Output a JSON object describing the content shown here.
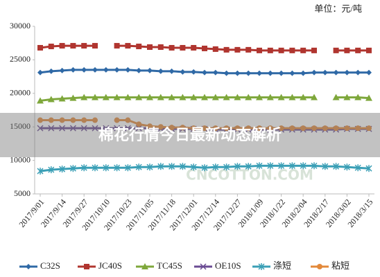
{
  "chart_data": {
    "type": "line",
    "unit_label": "单位：元/吨",
    "banner": "棉花行情今日最新动态解析",
    "watermark": "CNCOTTON.COM",
    "categories": [
      "2017/9/01",
      null,
      "2017/9/14",
      null,
      "2017/9/27",
      null,
      "2017/10/10",
      null,
      "2017/10/23",
      null,
      "2017/11/05",
      null,
      "2017/11/18",
      null,
      "2017/12/01",
      null,
      "2017/12/14",
      null,
      "2017/12/27",
      null,
      "2018/1/09",
      null,
      "2018/1/22",
      null,
      "2018/2/04",
      null,
      "2018/2/17",
      null,
      "2018/3/02",
      null,
      "2018/3/15"
    ],
    "series": [
      {
        "name": "C32S",
        "color": "#2f69a6",
        "marker": "diamond",
        "values": [
          23100,
          23300,
          23400,
          23500,
          23500,
          23500,
          23500,
          23500,
          23500,
          23400,
          23400,
          23300,
          23300,
          23200,
          23200,
          23100,
          23100,
          23000,
          23000,
          23000,
          23000,
          23000,
          23000,
          23000,
          23000,
          23100,
          23100,
          23100,
          23100,
          23100,
          23100
        ]
      },
      {
        "name": "JC40S",
        "color": "#b0352f",
        "marker": "square",
        "values": [
          26800,
          27000,
          27100,
          27100,
          27100,
          27100,
          null,
          27100,
          27100,
          27000,
          26900,
          26900,
          26800,
          26800,
          26800,
          26700,
          26600,
          26500,
          26500,
          26500,
          26400,
          26400,
          26400,
          26400,
          26400,
          26400,
          null,
          26400,
          26400,
          26400,
          26400
        ]
      },
      {
        "name": "TC45S",
        "color": "#7ea73b",
        "marker": "triangle",
        "values": [
          18900,
          19100,
          19200,
          19300,
          19400,
          19400,
          19400,
          19400,
          19400,
          19400,
          19400,
          19400,
          19400,
          19400,
          19400,
          19400,
          19400,
          19400,
          19400,
          19400,
          19400,
          19400,
          19400,
          19400,
          19400,
          19400,
          null,
          19400,
          19400,
          19400,
          19300
        ]
      },
      {
        "name": "OE10S",
        "color": "#6a4b93",
        "marker": "cross",
        "values": [
          14800,
          14800,
          14800,
          14800,
          14800,
          14800,
          14800,
          14800,
          14800,
          14800,
          14800,
          14700,
          14700,
          14700,
          14700,
          14700,
          14600,
          14600,
          14600,
          14600,
          14600,
          14600,
          14600,
          14600,
          14600,
          14600,
          14600,
          14600,
          14700,
          14700,
          14700
        ]
      },
      {
        "name": "涤短",
        "color": "#3a9fb6",
        "marker": "star",
        "values": [
          8400,
          8600,
          8700,
          8800,
          8900,
          8900,
          8900,
          8900,
          8900,
          9000,
          9000,
          9100,
          9100,
          9100,
          9000,
          8900,
          9000,
          9000,
          9100,
          9100,
          9200,
          9200,
          9200,
          9200,
          9200,
          9200,
          9100,
          9100,
          9000,
          8900,
          8800
        ]
      },
      {
        "name": "粘短",
        "color": "#e3893a",
        "marker": "circle",
        "values": [
          16000,
          16000,
          16000,
          16000,
          16000,
          16000,
          null,
          16000,
          16000,
          15400,
          15100,
          15000,
          14900,
          14900,
          14800,
          14800,
          14800,
          14800,
          14800,
          14800,
          14800,
          14800,
          14800,
          14800,
          14800,
          14800,
          14800,
          14800,
          14800,
          14800,
          14800
        ]
      }
    ],
    "ylim": [
      5000,
      30000
    ],
    "yticks": [
      5000,
      10000,
      15000,
      20000,
      25000,
      30000
    ],
    "grid": false
  }
}
